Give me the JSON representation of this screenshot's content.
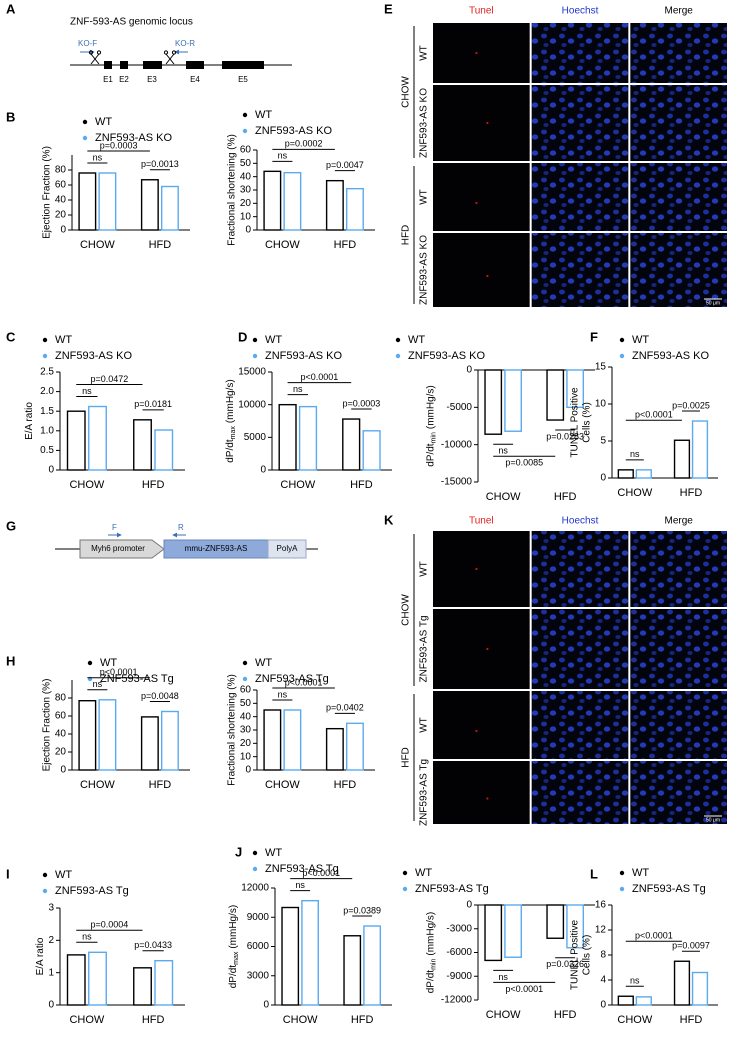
{
  "diagrams": [
    {
      "panel": "A",
      "title": "ZNF-593-AS genomic locus",
      "primers": [
        "KO-F",
        "KO-R"
      ],
      "exons": [
        "E1",
        "E2",
        "E3",
        "E4",
        "E5"
      ]
    },
    {
      "panel": "G",
      "elements": [
        "Myh6 promoter",
        "mmu-ZNF593-AS",
        "PolyA"
      ],
      "primers": [
        "F",
        "R"
      ]
    }
  ],
  "micrographs": [
    {
      "panel": "E",
      "columns": [
        "Tunel",
        "Hoechst",
        "Merge"
      ],
      "groups": [
        {
          "name": "CHOW",
          "rows": [
            "WT",
            "ZNF593-AS KO"
          ]
        },
        {
          "name": "HFD",
          "rows": [
            "WT",
            "ZNF593-AS KO"
          ]
        }
      ],
      "scale_bar": "50 μm"
    },
    {
      "panel": "K",
      "columns": [
        "Tunel",
        "Hoechst",
        "Merge"
      ],
      "groups": [
        {
          "name": "CHOW",
          "rows": [
            "WT",
            "ZNF593-AS Tg"
          ]
        },
        {
          "name": "HFD",
          "rows": [
            "WT",
            "ZNF593-AS Tg"
          ]
        }
      ],
      "scale_bar": "50 μm"
    }
  ],
  "chart_data": [
    {
      "panel": "B",
      "type": "bar",
      "ylabel": "Ejection Fraction (%)",
      "categories": [
        "CHOW",
        "HFD"
      ],
      "series": [
        {
          "name": "WT",
          "color": "#000000",
          "values": [
            76,
            67
          ]
        },
        {
          "name": "ZNF593-AS KO",
          "color": "#5aaaf0",
          "values": [
            76,
            58
          ]
        }
      ],
      "ylim": [
        0,
        100
      ],
      "yticks": [
        0,
        20,
        40,
        60,
        80
      ],
      "comparisons": {
        "across": "p=0.0003",
        "chow": "ns",
        "hfd": "p=0.0013"
      }
    },
    {
      "type": "bar",
      "ylabel": "Fractional shortening (%)",
      "categories": [
        "CHOW",
        "HFD"
      ],
      "series": [
        {
          "name": "WT",
          "color": "#000000",
          "values": [
            44,
            37
          ]
        },
        {
          "name": "ZNF593-AS KO",
          "color": "#5aaaf0",
          "values": [
            43,
            31
          ]
        }
      ],
      "ylim": [
        0,
        60
      ],
      "yticks": [
        0,
        10,
        20,
        30,
        40,
        50,
        60
      ],
      "comparisons": {
        "across": "p=0.0002",
        "chow": "ns",
        "hfd": "p=0.0047"
      }
    },
    {
      "panel": "C",
      "type": "bar",
      "ylabel": "E/A ratio",
      "categories": [
        "CHOW",
        "HFD"
      ],
      "series": [
        {
          "name": "WT",
          "color": "#000000",
          "values": [
            1.5,
            1.28
          ]
        },
        {
          "name": "ZNF593-AS KO",
          "color": "#5aaaf0",
          "values": [
            1.62,
            1.02
          ]
        }
      ],
      "ylim": [
        0,
        2.5
      ],
      "yticks": [
        0,
        0.5,
        {
          "value": 1,
          "label": "1.0"
        },
        1.5,
        {
          "value": 2,
          "label": "2.0"
        },
        2.5
      ],
      "comparisons": {
        "across": "p=0.0472",
        "chow": "ns",
        "hfd": "p=0.0181"
      }
    },
    {
      "panel": "D",
      "type": "bar",
      "ylabel": "dP/dt",
      "ylabel_sub": "max",
      "ylabel_unit": "(mmHg/s)",
      "categories": [
        "CHOW",
        "HFD"
      ],
      "series": [
        {
          "name": "WT",
          "color": "#000000",
          "values": [
            10000,
            7800
          ]
        },
        {
          "name": "ZNF593-AS KO",
          "color": "#5aaaf0",
          "values": [
            9700,
            6000
          ]
        }
      ],
      "ylim": [
        0,
        15000
      ],
      "yticks": [
        0,
        5000,
        10000,
        15000
      ],
      "comparisons": {
        "across": "p<0.0001",
        "chow": "ns",
        "hfd": "p=0.0003"
      }
    },
    {
      "type": "bar",
      "ylabel": "dP/dt",
      "ylabel_sub": "min",
      "ylabel_unit": "(mmHg/s)",
      "categories": [
        "CHOW",
        "HFD"
      ],
      "series": [
        {
          "name": "WT",
          "color": "#000000",
          "values": [
            -8600,
            -6700
          ]
        },
        {
          "name": "ZNF593-AS KO",
          "color": "#5aaaf0",
          "values": [
            -8200,
            -5000
          ]
        }
      ],
      "ylim": [
        -15000,
        0
      ],
      "yticks": [
        -15000,
        -10000,
        -5000,
        0
      ],
      "comparisons": {
        "across": "p=0.0085",
        "chow": "ns",
        "hfd": "p=0.0283"
      }
    },
    {
      "panel": "F",
      "type": "bar",
      "ylabel": [
        "TUNEL Positive",
        "Cells (%)"
      ],
      "categories": [
        "CHOW",
        "HFD"
      ],
      "series": [
        {
          "name": "WT",
          "color": "#000000",
          "values": [
            1.1,
            5.1
          ]
        },
        {
          "name": "ZNF593-AS KO",
          "color": "#5aaaf0",
          "values": [
            1.1,
            7.7
          ]
        }
      ],
      "ylim": [
        0,
        15
      ],
      "yticks": [
        0,
        5,
        10,
        15
      ],
      "comparisons": {
        "across": "p<0.0001",
        "chow": "ns",
        "hfd": "p=0.0025"
      }
    },
    {
      "panel": "H",
      "type": "bar",
      "ylabel": "Ejection Fraction (%)",
      "categories": [
        "CHOW",
        "HFD"
      ],
      "series": [
        {
          "name": "WT",
          "color": "#000000",
          "values": [
            77,
            59
          ]
        },
        {
          "name": "ZNF593-AS Tg",
          "color": "#5aaaf0",
          "values": [
            78,
            65
          ]
        }
      ],
      "ylim": [
        0,
        100
      ],
      "yticks": [
        0,
        20,
        40,
        60,
        80
      ],
      "comparisons": {
        "across": "p<0.0001",
        "chow": "ns",
        "hfd": "p=0.0048"
      }
    },
    {
      "type": "bar",
      "ylabel": "Fractional shortening (%)",
      "categories": [
        "CHOW",
        "HFD"
      ],
      "series": [
        {
          "name": "WT",
          "color": "#000000",
          "values": [
            45,
            31
          ]
        },
        {
          "name": "ZNF593-AS Tg",
          "color": "#5aaaf0",
          "values": [
            45,
            35
          ]
        }
      ],
      "ylim": [
        0,
        60
      ],
      "yticks": [
        0,
        10,
        20,
        30,
        40,
        50,
        60
      ],
      "comparisons": {
        "across": "p<0.0001",
        "chow": "ns",
        "hfd": "p=0.0402"
      }
    },
    {
      "panel": "I",
      "type": "bar",
      "ylabel": "E/A ratio",
      "categories": [
        "CHOW",
        "HFD"
      ],
      "series": [
        {
          "name": "WT",
          "color": "#000000",
          "values": [
            1.55,
            1.15
          ]
        },
        {
          "name": "ZNF593-AS Tg",
          "color": "#5aaaf0",
          "values": [
            1.63,
            1.37
          ]
        }
      ],
      "ylim": [
        0,
        3
      ],
      "yticks": [
        0,
        1,
        2,
        3
      ],
      "comparisons": {
        "across": "p=0.0004",
        "chow": "ns",
        "hfd": "p=0.0433"
      }
    },
    {
      "panel": "J",
      "type": "bar",
      "ylabel": "dP/dt",
      "ylabel_sub": "max",
      "ylabel_unit": "(mmHg/s)",
      "categories": [
        "CHOW",
        "HFD"
      ],
      "series": [
        {
          "name": "WT",
          "color": "#000000",
          "values": [
            10000,
            7100
          ]
        },
        {
          "name": "ZNF593-AS Tg",
          "color": "#5aaaf0",
          "values": [
            10700,
            8100
          ]
        }
      ],
      "ylim": [
        0,
        12000
      ],
      "yticks": [
        0,
        3000,
        6000,
        9000,
        12000
      ],
      "comparisons": {
        "across": "p<0.0001",
        "chow": "ns",
        "hfd": "p=0.0389"
      }
    },
    {
      "type": "bar",
      "ylabel": "dP/dt",
      "ylabel_sub": "min",
      "ylabel_unit": "(mmHg/s)",
      "categories": [
        "CHOW",
        "HFD"
      ],
      "series": [
        {
          "name": "WT",
          "color": "#000000",
          "values": [
            -7000,
            -4200
          ]
        },
        {
          "name": "ZNF593-AS Tg",
          "color": "#5aaaf0",
          "values": [
            -6600,
            -5400
          ]
        }
      ],
      "ylim": [
        -12000,
        0
      ],
      "yticks": [
        -12000,
        -9000,
        -6000,
        -3000,
        0
      ],
      "comparisons": {
        "across": "p<0.0001",
        "chow": "ns",
        "hfd": "p=0.0326"
      }
    },
    {
      "panel": "L",
      "type": "bar",
      "ylabel": [
        "TUNEL Positive",
        "Cells (%)"
      ],
      "categories": [
        "CHOW",
        "HFD"
      ],
      "series": [
        {
          "name": "WT",
          "color": "#000000",
          "values": [
            1.4,
            7.0
          ]
        },
        {
          "name": "ZNF593-AS Tg",
          "color": "#5aaaf0",
          "values": [
            1.3,
            5.2
          ]
        }
      ],
      "ylim": [
        0,
        16
      ],
      "yticks": [
        0,
        4,
        8,
        12,
        16
      ],
      "comparisons": {
        "across": "p<0.0001",
        "chow": "ns",
        "hfd": "p=0.0097"
      }
    }
  ]
}
